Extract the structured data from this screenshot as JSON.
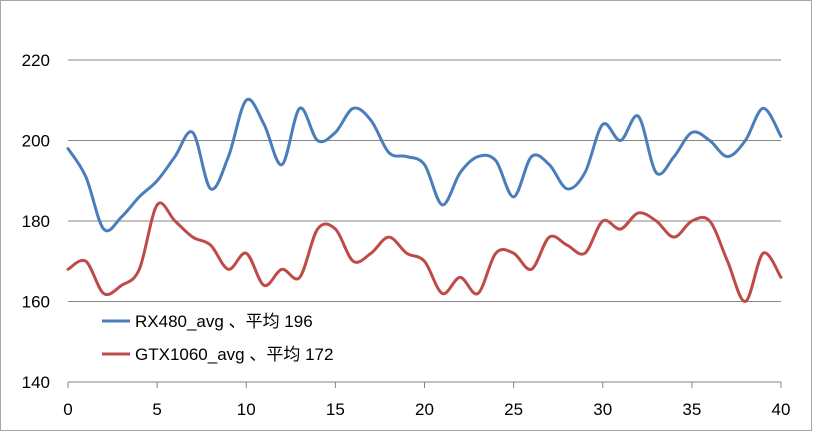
{
  "chart_data": {
    "type": "line",
    "xlim": [
      0,
      40
    ],
    "ylim": [
      140,
      220
    ],
    "x_ticks": [
      "0",
      "5",
      "10",
      "15",
      "20",
      "25",
      "30",
      "35",
      "40"
    ],
    "y_ticks": [
      "140",
      "160",
      "180",
      "200",
      "220"
    ],
    "grid": "horizontal",
    "legend_placement": "bottom-left",
    "x": [
      0,
      1,
      2,
      3,
      4,
      5,
      6,
      7,
      8,
      9,
      10,
      11,
      12,
      13,
      14,
      15,
      16,
      17,
      18,
      19,
      20,
      21,
      22,
      23,
      24,
      25,
      26,
      27,
      28,
      29,
      30,
      31,
      32,
      33,
      34,
      35,
      36,
      37,
      38,
      39,
      40
    ],
    "series": [
      {
        "name": "RX480_avg 、平均 196",
        "color": "#4a7ebb",
        "values": [
          198,
          191,
          178,
          181,
          186,
          190,
          196,
          202,
          188,
          196,
          210,
          204,
          194,
          208,
          200,
          202,
          208,
          205,
          197,
          196,
          194,
          184,
          192,
          196,
          195,
          186,
          196,
          194,
          188,
          192,
          204,
          200,
          206,
          192,
          196,
          202,
          200,
          196,
          200,
          208,
          201
        ]
      },
      {
        "name": "GTX1060_avg 、平均 172",
        "color": "#be4b48",
        "values": [
          168,
          170,
          162,
          164,
          168,
          184,
          180,
          176,
          174,
          168,
          172,
          164,
          168,
          166,
          178,
          178,
          170,
          172,
          176,
          172,
          170,
          162,
          166,
          162,
          172,
          172,
          168,
          176,
          174,
          172,
          180,
          178,
          182,
          180,
          176,
          180,
          180,
          170,
          160,
          172,
          166
        ]
      }
    ]
  }
}
